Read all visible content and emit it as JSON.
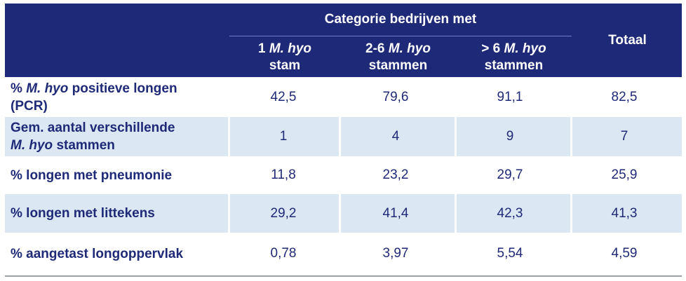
{
  "header": {
    "group_title": "Categorie bedrijven met",
    "col1_line1_pre": "1 ",
    "col1_line1_italic": "M. hyo",
    "col1_line2": "stam",
    "col2_line1_pre": "2-6 ",
    "col2_line1_italic": "M. hyo",
    "col2_line2": "stammen",
    "col3_line1_pre": "> 6 ",
    "col3_line1_italic": "M. hyo",
    "col3_line2": "stammen",
    "total": "Totaal"
  },
  "rows": [
    {
      "label_line1_pre": "% ",
      "label_line1_italic": "M. hyo",
      "label_line1_post": " positieve longen",
      "label_line2": "(PCR)",
      "values": [
        "42,5",
        "79,6",
        "91,1",
        "82,5"
      ]
    },
    {
      "label_line1": "Gem. aantal verschillende",
      "label_line2_italic": "M. hyo",
      "label_line2_post": " stammen",
      "values": [
        "1",
        "4",
        "9",
        "7"
      ]
    },
    {
      "label": "% longen met pneumonie",
      "values": [
        "11,8",
        "23,2",
        "29,7",
        "25,9"
      ]
    },
    {
      "label": "% longen met littekens",
      "values": [
        "29,2",
        "41,4",
        "42,3",
        "41,3"
      ]
    },
    {
      "label": "% aangetast longoppervlak",
      "values": [
        "0,78",
        "3,97",
        "5,54",
        "4,59"
      ]
    }
  ],
  "colors": {
    "header_bg": "#1e2a78",
    "text": "#1e2a78",
    "shade": "#dbe7f3"
  }
}
